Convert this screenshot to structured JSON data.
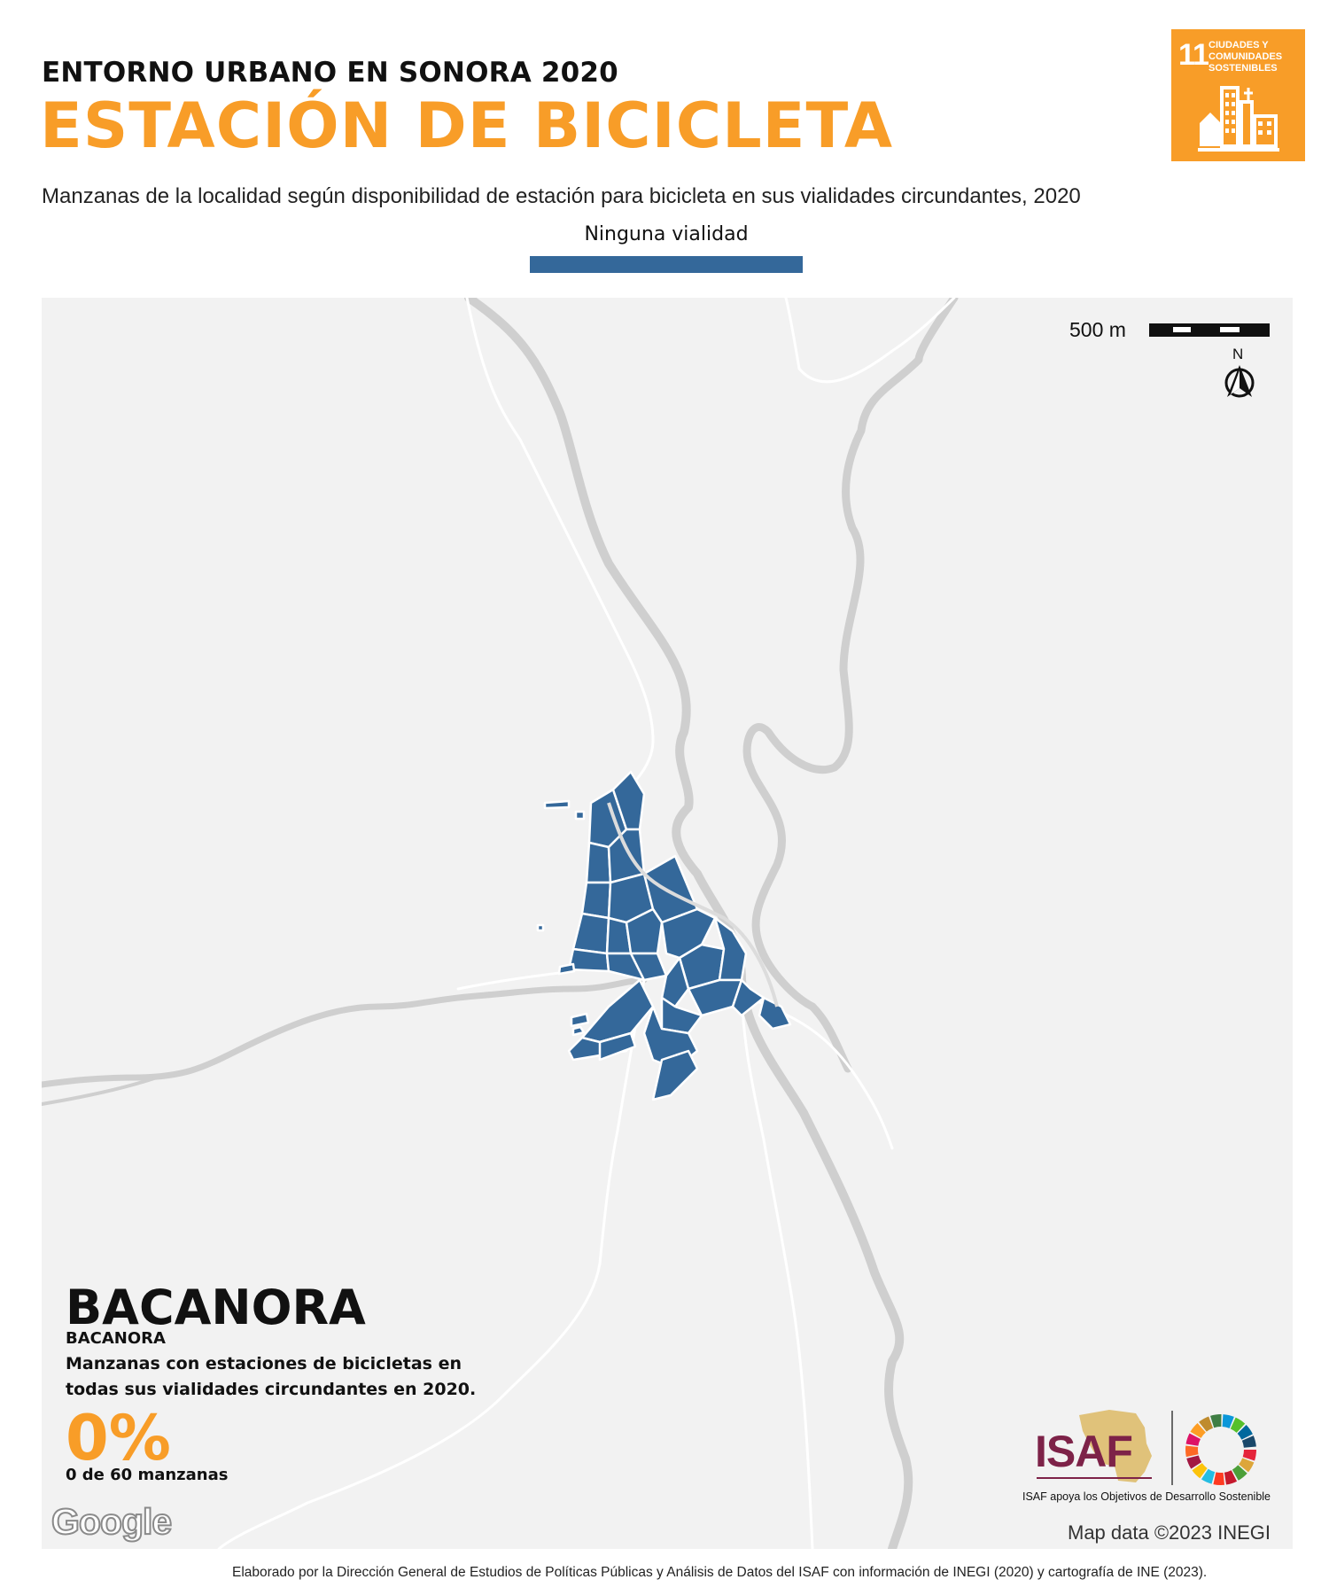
{
  "header": {
    "supertitle": "ENTORNO URBANO EN SONORA 2020",
    "title": "ESTACIÓN DE BICICLETA",
    "subtitle": "Manzanas de la localidad según disponibilidad de estación para bicicleta en sus vialidades circundantes, 2020"
  },
  "sdg_badge": {
    "number": "11",
    "label": "CIUDADES Y COMUNIDADES SOSTENIBLES",
    "color": "#f89d28"
  },
  "legend": {
    "items": [
      {
        "label": "Ninguna vialidad",
        "color": "#34689a"
      }
    ]
  },
  "map": {
    "scale_label": "500 m",
    "north_label": "N",
    "background_color": "#f2f2f2",
    "block_color": "#34689a"
  },
  "locality": {
    "name": "BACANORA",
    "municipality": "BACANORA",
    "stat_description": "Manzanas con estaciones de bicicletas en todas sus vialidades circundantes en 2020.",
    "stat_value": "0%",
    "stat_count": "0 de 60 manzanas"
  },
  "attribution": {
    "google": "Google",
    "map_data": "Map data ©2023 INEGI",
    "isaf_logo_text": "ISAF",
    "isaf_caption": "ISAF apoya los Objetivos de Desarrollo Sostenible",
    "footer": "Elaborado por la Dirección General de Estudios de Políticas Públicas y Análisis de Datos del ISAF con información de INEGI (2020) y cartografía de INE (2023)."
  }
}
